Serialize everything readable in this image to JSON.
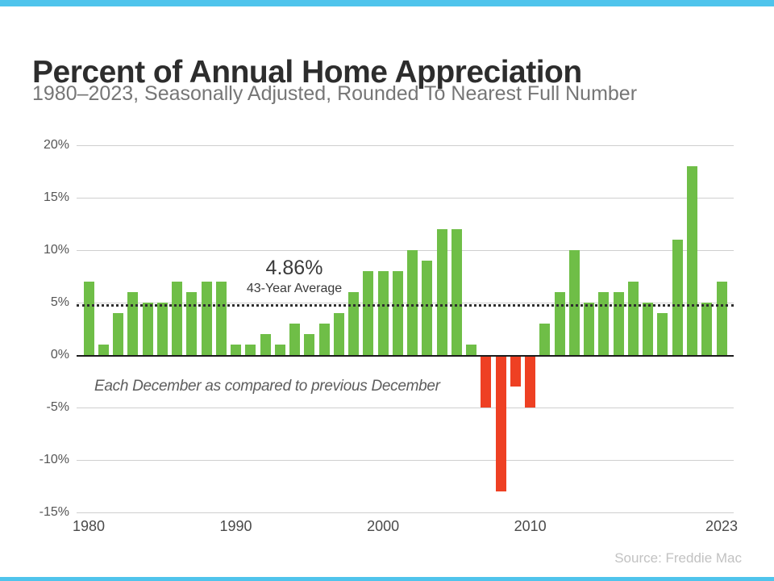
{
  "page": {
    "title": "Percent of Annual Home Appreciation",
    "subtitle": "1980–2023, Seasonally Adjusted, Rounded To Nearest Full Number",
    "source": "Source: Freddie Mac"
  },
  "chart_data": {
    "type": "bar",
    "title": "Percent of Annual Home Appreciation",
    "subtitle": "1980–2023, Seasonally Adjusted, Rounded To Nearest Full Number",
    "xlabel": "",
    "ylabel": "",
    "categories": [
      1980,
      1981,
      1982,
      1983,
      1984,
      1985,
      1986,
      1987,
      1988,
      1989,
      1990,
      1991,
      1992,
      1993,
      1994,
      1995,
      1996,
      1997,
      1998,
      1999,
      2000,
      2001,
      2002,
      2003,
      2004,
      2005,
      2006,
      2007,
      2008,
      2009,
      2010,
      2011,
      2012,
      2013,
      2014,
      2015,
      2016,
      2017,
      2018,
      2019,
      2020,
      2021,
      2022,
      2023
    ],
    "values": [
      7,
      1,
      4,
      6,
      5,
      5,
      7,
      6,
      7,
      7,
      1,
      1,
      2,
      1,
      3,
      2,
      3,
      4,
      6,
      8,
      8,
      8,
      10,
      9,
      12,
      12,
      1,
      -5,
      -13,
      -3,
      -5,
      3,
      6,
      10,
      5,
      6,
      6,
      7,
      5,
      4,
      11,
      18,
      5,
      7
    ],
    "ylim": [
      -15,
      20
    ],
    "yticks": [
      20,
      15,
      10,
      5,
      0,
      -5,
      -10,
      -15
    ],
    "ytick_labels": [
      "20%",
      "15%",
      "10%",
      "5%",
      "0%",
      "-5%",
      "-10%",
      "-15%"
    ],
    "xtick_labels": [
      "1980",
      "1990",
      "2000",
      "2010",
      "2023"
    ],
    "grid": true,
    "legend": false,
    "average_line": {
      "value": 4.86,
      "value_label": "4.86%",
      "caption": "43-Year Average"
    },
    "annotation": "Each December as compared to previous December",
    "colors": {
      "positive": "#6fbe47",
      "negative": "#ee4023",
      "accent_stripe": "#4fc4ec"
    }
  }
}
